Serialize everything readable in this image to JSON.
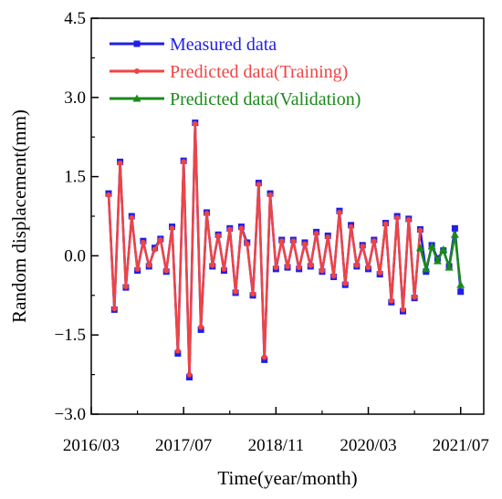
{
  "chart_data": {
    "type": "line",
    "xlabel": "Time(year/month)",
    "ylabel": "Random displacement(mm)",
    "x_ticks": [
      "2016/03",
      "2017/07",
      "2018/11",
      "2020/03",
      "2021/07"
    ],
    "y_ticks": [
      "-3.0",
      "-1.5",
      "0.0",
      "1.5",
      "3.0",
      "4.5"
    ],
    "xlim": [
      "2016/03",
      "2021/11"
    ],
    "ylim": [
      -3.0,
      4.5
    ],
    "legend_position": "top-left",
    "series": [
      {
        "name": "Measured data",
        "color": "#1f1fe6",
        "marker": "square",
        "x": [
          "2016/06",
          "2016/07",
          "2016/08",
          "2016/09",
          "2016/10",
          "2016/11",
          "2016/12",
          "2017/01",
          "2017/02",
          "2017/03",
          "2017/04",
          "2017/05",
          "2017/06",
          "2017/07",
          "2017/08",
          "2017/09",
          "2017/10",
          "2017/11",
          "2017/12",
          "2018/01",
          "2018/02",
          "2018/03",
          "2018/04",
          "2018/05",
          "2018/06",
          "2018/07",
          "2018/08",
          "2018/09",
          "2018/10",
          "2018/11",
          "2018/12",
          "2019/01",
          "2019/02",
          "2019/03",
          "2019/04",
          "2019/05",
          "2019/06",
          "2019/07",
          "2019/08",
          "2019/09",
          "2019/10",
          "2019/11",
          "2019/12",
          "2020/01",
          "2020/02",
          "2020/03",
          "2020/04",
          "2020/05",
          "2020/06",
          "2020/07",
          "2020/08",
          "2020/09",
          "2020/10",
          "2020/11",
          "2020/12",
          "2021/01",
          "2021/02",
          "2021/03",
          "2021/04",
          "2021/05",
          "2021/06",
          "2021/07"
        ],
        "values": [
          1.18,
          -1.02,
          1.78,
          -0.6,
          0.75,
          -0.28,
          0.28,
          -0.2,
          0.15,
          0.32,
          -0.3,
          0.55,
          -1.85,
          1.8,
          -2.3,
          2.52,
          -1.4,
          0.82,
          -0.2,
          0.4,
          -0.28,
          0.52,
          -0.7,
          0.55,
          0.25,
          -0.75,
          1.38,
          -1.97,
          1.18,
          -0.25,
          0.3,
          -0.22,
          0.3,
          -0.25,
          0.25,
          -0.2,
          0.45,
          -0.3,
          0.38,
          -0.4,
          0.85,
          -0.55,
          0.58,
          -0.2,
          0.2,
          -0.25,
          0.3,
          -0.35,
          0.62,
          -0.88,
          0.75,
          -1.05,
          0.7,
          -0.8,
          0.5,
          -0.3,
          0.2,
          -0.05,
          0.1,
          -0.2,
          0.52,
          -0.68
        ]
      },
      {
        "name": "Predicted data(Training)",
        "color": "#ef4444",
        "marker": "circle",
        "x": [
          "2016/06",
          "2016/07",
          "2016/08",
          "2016/09",
          "2016/10",
          "2016/11",
          "2016/12",
          "2017/01",
          "2017/02",
          "2017/03",
          "2017/04",
          "2017/05",
          "2017/06",
          "2017/07",
          "2017/08",
          "2017/09",
          "2017/10",
          "2017/11",
          "2017/12",
          "2018/01",
          "2018/02",
          "2018/03",
          "2018/04",
          "2018/05",
          "2018/06",
          "2018/07",
          "2018/08",
          "2018/09",
          "2018/10",
          "2018/11",
          "2018/12",
          "2019/01",
          "2019/02",
          "2019/03",
          "2019/04",
          "2019/05",
          "2019/06",
          "2019/07",
          "2019/08",
          "2019/09",
          "2019/10",
          "2019/11",
          "2019/12",
          "2020/01",
          "2020/02",
          "2020/03",
          "2020/04",
          "2020/05",
          "2020/06",
          "2020/07",
          "2020/08",
          "2020/09",
          "2020/10",
          "2020/11",
          "2020/12"
        ],
        "values": [
          1.15,
          -1.0,
          1.75,
          -0.58,
          0.72,
          -0.25,
          0.25,
          -0.18,
          0.12,
          0.3,
          -0.28,
          0.52,
          -1.8,
          1.78,
          -2.25,
          2.5,
          -1.35,
          0.8,
          -0.18,
          0.38,
          -0.25,
          0.5,
          -0.68,
          0.52,
          0.22,
          -0.72,
          1.35,
          -1.92,
          1.15,
          -0.22,
          0.28,
          -0.2,
          0.28,
          -0.22,
          0.22,
          -0.18,
          0.42,
          -0.28,
          0.35,
          -0.38,
          0.82,
          -0.52,
          0.55,
          -0.18,
          0.18,
          -0.22,
          0.28,
          -0.32,
          0.6,
          -0.85,
          0.72,
          -1.02,
          0.68,
          -0.78,
          0.48
        ]
      },
      {
        "name": "Predicted data(Validation)",
        "color": "#1a8a1a",
        "marker": "triangle",
        "x": [
          "2020/12",
          "2021/01",
          "2021/02",
          "2021/03",
          "2021/04",
          "2021/05",
          "2021/06",
          "2021/07"
        ],
        "values": [
          0.15,
          -0.25,
          0.18,
          -0.1,
          0.12,
          -0.22,
          0.4,
          -0.55
        ]
      }
    ]
  }
}
